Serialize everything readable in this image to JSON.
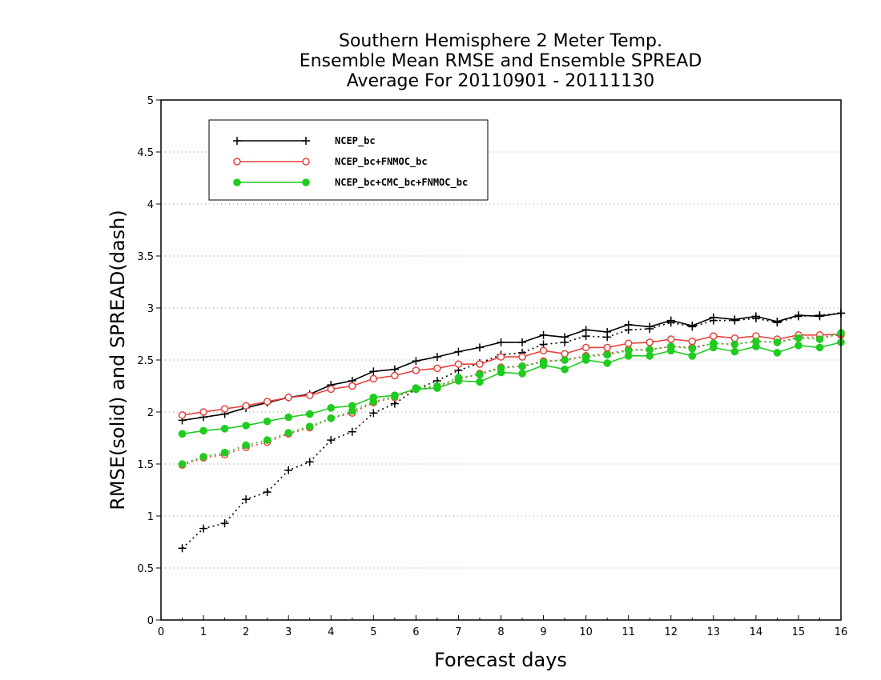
{
  "chart_data": {
    "type": "line",
    "title_lines": [
      "Southern Hemisphere 2 Meter Temp.",
      "Ensemble Mean RMSE and Ensemble SPREAD",
      "Average For 20110901 - 20111130"
    ],
    "xlabel": "Forecast days",
    "ylabel": "RMSE(solid) and SPREAD(dash)",
    "xlim": [
      0,
      16
    ],
    "ylim": [
      0,
      5
    ],
    "xticks": [
      "0",
      "1",
      "2",
      "3",
      "4",
      "5",
      "6",
      "7",
      "8",
      "9",
      "10",
      "11",
      "12",
      "13",
      "14",
      "15",
      "16"
    ],
    "yticks": [
      "0",
      "0.5",
      "1",
      "1.5",
      "2",
      "2.5",
      "3",
      "3.5",
      "4",
      "4.5",
      "5"
    ],
    "grid": "horizontal dotted",
    "legend_placement": "top-left",
    "x": [
      0.5,
      1,
      1.5,
      2,
      2.5,
      3,
      3.5,
      4,
      4.5,
      5,
      5.5,
      6,
      6.5,
      7,
      7.5,
      8,
      8.5,
      9,
      9.5,
      10,
      10.5,
      11,
      11.5,
      12,
      12.5,
      13,
      13.5,
      14,
      14.5,
      15,
      15.5,
      16
    ],
    "series": [
      {
        "name": "NCEP_bc",
        "color": "#000000",
        "marker": "plus",
        "rmse": [
          1.92,
          1.95,
          1.98,
          2.04,
          2.09,
          2.14,
          2.17,
          2.26,
          2.3,
          2.39,
          2.41,
          2.49,
          2.53,
          2.58,
          2.62,
          2.67,
          2.67,
          2.74,
          2.72,
          2.79,
          2.77,
          2.84,
          2.82,
          2.88,
          2.83,
          2.91,
          2.89,
          2.92,
          2.87,
          2.93,
          2.92,
          2.95
        ],
        "spread": [
          0.69,
          0.88,
          0.93,
          1.16,
          1.23,
          1.44,
          1.52,
          1.73,
          1.81,
          1.99,
          2.08,
          2.22,
          2.3,
          2.4,
          2.47,
          2.55,
          2.57,
          2.65,
          2.67,
          2.73,
          2.72,
          2.79,
          2.8,
          2.86,
          2.82,
          2.88,
          2.88,
          2.9,
          2.86,
          2.92,
          2.93,
          2.95
        ]
      },
      {
        "name": "NCEP_bc+FNMOC_bc",
        "color": "#e8413c",
        "marker": "open-circle",
        "rmse": [
          1.97,
          2.0,
          2.03,
          2.06,
          2.1,
          2.14,
          2.16,
          2.22,
          2.25,
          2.32,
          2.35,
          2.4,
          2.42,
          2.46,
          2.46,
          2.53,
          2.53,
          2.59,
          2.56,
          2.62,
          2.62,
          2.66,
          2.67,
          2.7,
          2.68,
          2.73,
          2.71,
          2.73,
          2.7,
          2.74,
          2.74,
          2.75
        ],
        "spread": [
          1.49,
          1.56,
          1.59,
          1.66,
          1.71,
          1.79,
          1.85,
          1.94,
          1.99,
          2.09,
          2.14,
          2.22,
          2.24,
          2.31,
          2.37,
          2.43,
          2.44,
          2.49,
          2.5,
          2.54,
          2.56,
          2.6,
          2.6,
          2.63,
          2.62,
          2.66,
          2.65,
          2.68,
          2.67,
          2.72,
          2.72,
          2.74
        ]
      },
      {
        "name": "NCEP_bc+CMC_bc+FNMOC_bc",
        "color": "#1fcc1f",
        "marker": "filled-circle",
        "rmse": [
          1.79,
          1.82,
          1.84,
          1.87,
          1.91,
          1.95,
          1.98,
          2.04,
          2.06,
          2.14,
          2.16,
          2.22,
          2.23,
          2.3,
          2.29,
          2.38,
          2.37,
          2.45,
          2.41,
          2.5,
          2.47,
          2.54,
          2.54,
          2.59,
          2.54,
          2.62,
          2.58,
          2.63,
          2.57,
          2.64,
          2.62,
          2.67
        ],
        "spread": [
          1.5,
          1.57,
          1.61,
          1.68,
          1.73,
          1.8,
          1.86,
          1.94,
          2.01,
          2.1,
          2.15,
          2.23,
          2.25,
          2.33,
          2.36,
          2.42,
          2.44,
          2.48,
          2.5,
          2.53,
          2.55,
          2.59,
          2.6,
          2.63,
          2.61,
          2.66,
          2.65,
          2.68,
          2.67,
          2.71,
          2.7,
          2.76
        ]
      }
    ]
  }
}
